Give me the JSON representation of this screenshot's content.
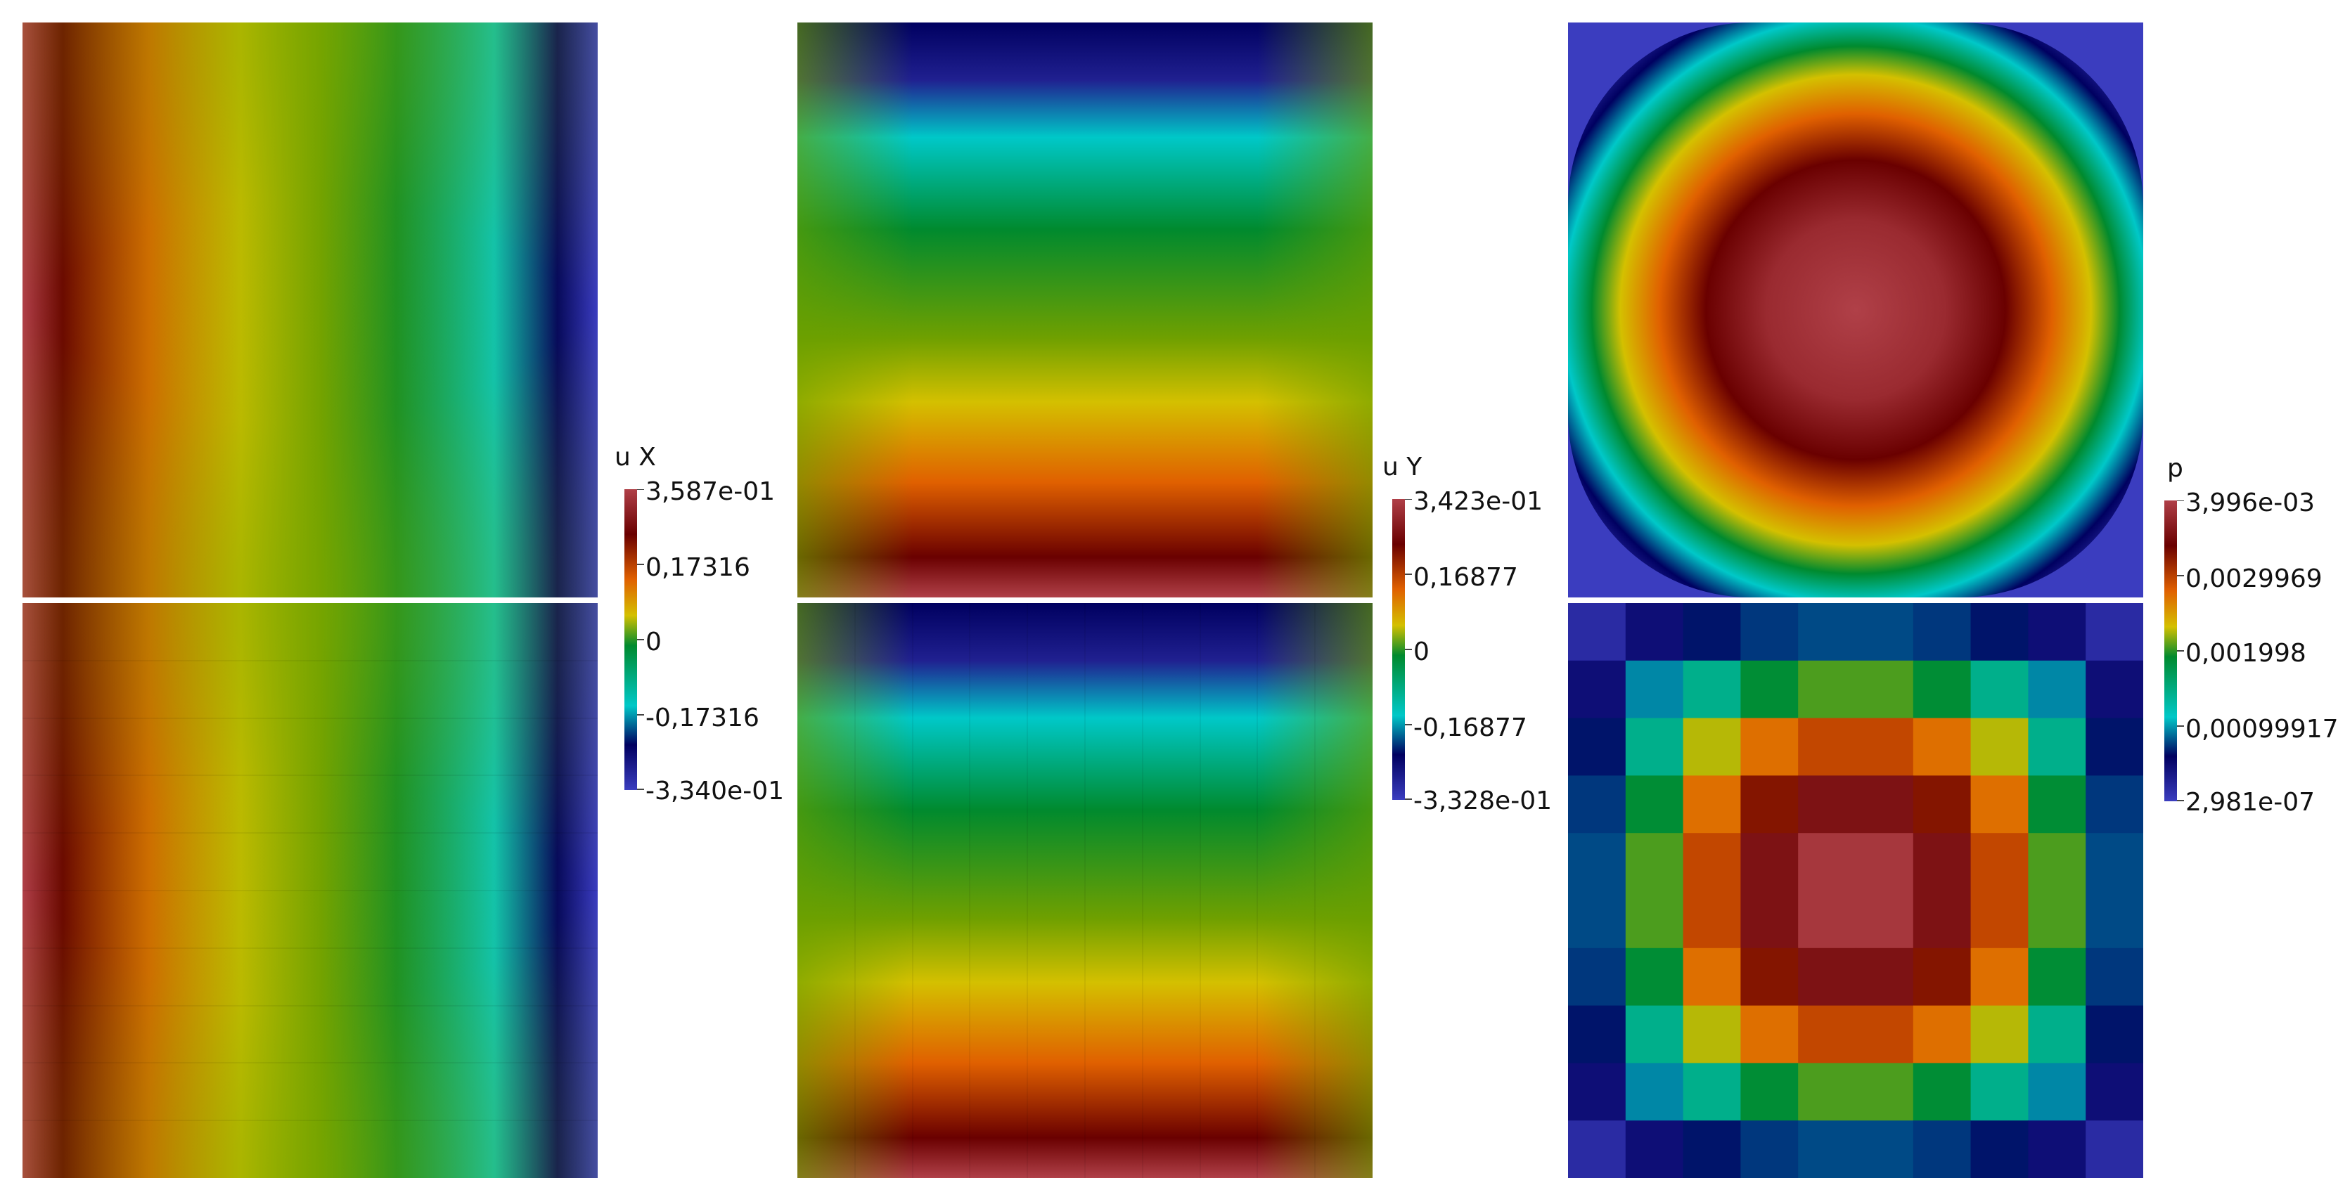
{
  "figure": {
    "columns": [
      {
        "field": "u X",
        "colorbar": {
          "title": "u X",
          "labels": [
            "3,587e-01",
            "0,17316",
            "0",
            "-0,17316",
            "-3,340e-01"
          ]
        },
        "panels": [
          "smooth-field",
          "blocky-field"
        ]
      },
      {
        "field": "u Y",
        "colorbar": {
          "title": "u Y",
          "labels": [
            "3,423e-01",
            "0,16877",
            "0",
            "-0,16877",
            "-3,328e-01"
          ]
        },
        "panels": [
          "smooth-field",
          "blocky-field"
        ]
      },
      {
        "field": "p",
        "colorbar": {
          "title": "p",
          "labels": [
            "3,996e-03",
            "0,0029969",
            "0,001998",
            "0,00099917",
            "2,981e-07"
          ]
        },
        "panels": [
          "smooth-field",
          "cell-grid-10x10"
        ]
      }
    ],
    "colormap": [
      "#3b3dbf",
      "#000060",
      "#00c8c8",
      "#008a2e",
      "#c8c800",
      "#e06000",
      "#6a0000",
      "#b04048"
    ]
  }
}
